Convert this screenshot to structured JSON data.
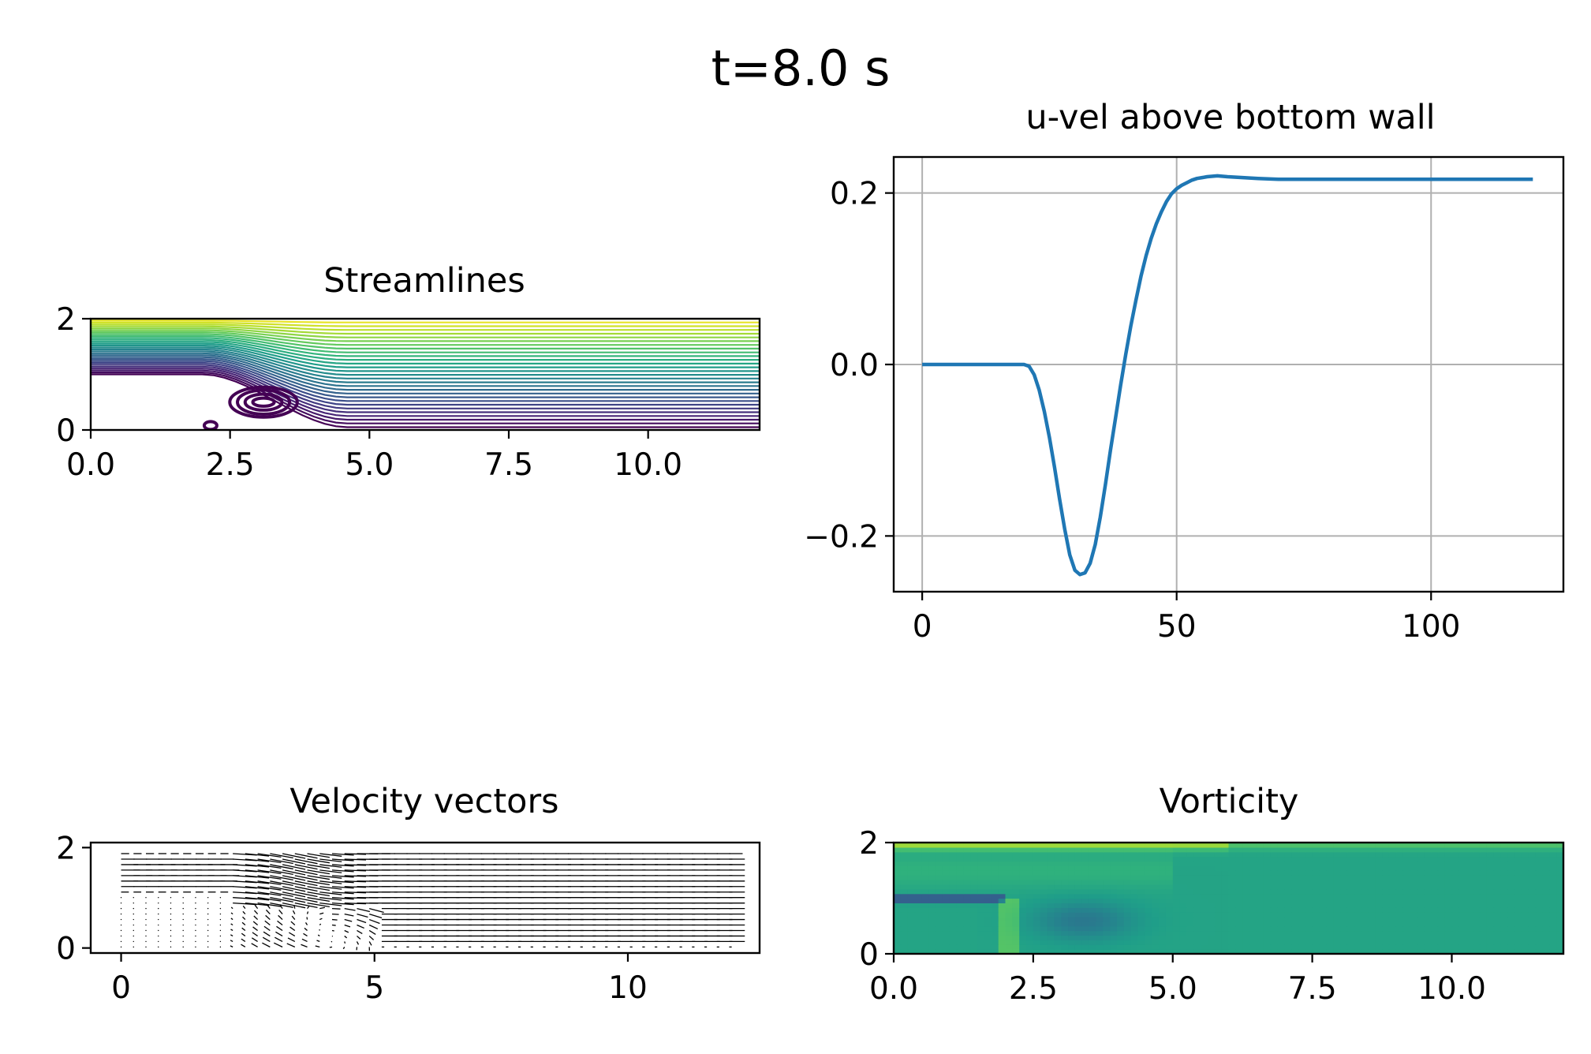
{
  "figure": {
    "suptitle": "t=8.0 s"
  },
  "colors": {
    "viridis": [
      "#440154",
      "#482878",
      "#3e4989",
      "#31688e",
      "#26828e",
      "#1f9e89",
      "#35b779",
      "#6ece58",
      "#b5de2b",
      "#fde725"
    ],
    "line": "#1f77b4",
    "grid": "#b0b0b0",
    "quiver": "#000000"
  },
  "chart_data": [
    {
      "id": "streamlines",
      "type": "contour",
      "title": "Streamlines",
      "xlabel": "",
      "ylabel": "",
      "xlim": [
        0,
        12
      ],
      "ylim": [
        0,
        2
      ],
      "xticks": [
        "0.0",
        "2.5",
        "5.0",
        "7.5",
        "10.0"
      ],
      "yticks": [
        "0",
        "2"
      ],
      "step": {
        "x": 2,
        "y": 1
      },
      "reattach_x": 4.6,
      "eddy": {
        "cx": 3.1,
        "cy": 0.5,
        "rx": [
          0.35,
          0.6,
          0.85,
          1.1
        ],
        "ry": [
          0.08,
          0.16,
          0.24,
          0.3
        ]
      },
      "n_levels": 30,
      "colormap": "viridis",
      "grid": false
    },
    {
      "id": "uvel",
      "type": "line",
      "title": "u-vel above bottom wall",
      "xlabel": "",
      "ylabel": "",
      "xlim": [
        -5.6,
        126
      ],
      "ylim": [
        -0.265,
        0.242
      ],
      "xticks": [
        "0",
        "50",
        "100"
      ],
      "yticks": [
        "−0.2",
        "0.0",
        "0.2"
      ],
      "grid": true,
      "series": [
        {
          "x": [
            0,
            5,
            10,
            15,
            20,
            21,
            22,
            23,
            24,
            25,
            26,
            27,
            28,
            29,
            30,
            31,
            32,
            33,
            34,
            35,
            36,
            37,
            38,
            39,
            40,
            41,
            42,
            43,
            44,
            45,
            46,
            47,
            48,
            49,
            50,
            51,
            52,
            53,
            54,
            55,
            56,
            58,
            60,
            63,
            66,
            70,
            80,
            90,
            100,
            110,
            120
          ],
          "y": [
            0.0,
            0.0,
            0.0,
            0.0,
            0.0,
            -0.002,
            -0.012,
            -0.03,
            -0.055,
            -0.085,
            -0.12,
            -0.157,
            -0.192,
            -0.222,
            -0.24,
            -0.245,
            -0.243,
            -0.232,
            -0.21,
            -0.178,
            -0.14,
            -0.1,
            -0.062,
            -0.024,
            0.012,
            0.045,
            0.075,
            0.103,
            0.127,
            0.147,
            0.164,
            0.178,
            0.19,
            0.199,
            0.205,
            0.209,
            0.212,
            0.215,
            0.217,
            0.218,
            0.219,
            0.22,
            0.219,
            0.218,
            0.217,
            0.216,
            0.216,
            0.216,
            0.216,
            0.216,
            0.216
          ]
        }
      ]
    },
    {
      "id": "quiver",
      "type": "quiver",
      "title": "Velocity vectors",
      "xlabel": "",
      "ylabel": "",
      "xlim": [
        -0.6,
        12.6
      ],
      "ylim": [
        -0.1,
        2.1
      ],
      "xticks": [
        "0",
        "5",
        "10"
      ],
      "yticks": [
        "0",
        "2"
      ],
      "grid": false
    },
    {
      "id": "vorticity",
      "type": "heatmap",
      "title": "Vorticity",
      "xlabel": "",
      "ylabel": "",
      "xlim": [
        0,
        12
      ],
      "ylim": [
        0,
        2
      ],
      "xticks": [
        "0.0",
        "2.5",
        "5.0",
        "7.5",
        "10.0"
      ],
      "yticks": [
        "0",
        "2"
      ],
      "colormap": "viridis",
      "grid": false
    }
  ]
}
